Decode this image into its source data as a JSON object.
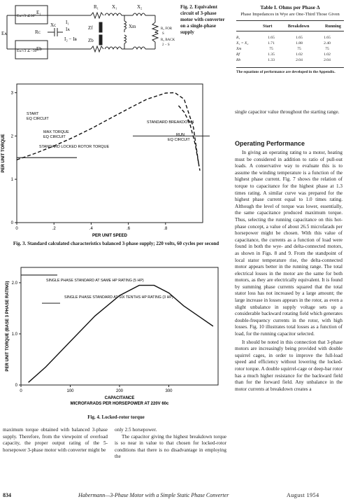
{
  "fig2": {
    "labels": [
      "R₁",
      "X₁",
      "X₂",
      "E₁",
      "I₁",
      "Iᴀ",
      "Zf",
      "Xm",
      "R₂ FOR",
      "S",
      "Eᴀ",
      "Rᴄ",
      "Xᴄ",
      "I₂ − Iᴃ",
      "Zb",
      "R₂ BACK",
      "2 − S",
      "Eb"
    ],
    "source_top": "Eᴀ/√3 ∠30°",
    "source_bot": "Eᴀ/√3 ∠−30°",
    "caption": [
      "Fig. 2.  Equivalent",
      "circuit of 3-phase",
      "motor with converter",
      "on a single-phase",
      "supply"
    ]
  },
  "table": {
    "title": "Table I.  Ohms per Phase Δ",
    "subtitle": "Phase Impedances in Wye are One-Third Those Given",
    "headers": [
      "Start",
      "Breakdown",
      "Running"
    ],
    "rows": [
      [
        "R₁",
        "1.65",
        "1.65",
        "1.65"
      ],
      [
        "X₁ = X₂",
        "1.71",
        "1.88",
        "2.40"
      ],
      [
        "Xm",
        "75",
        "75",
        "75"
      ],
      [
        "Rf",
        "1.35",
        "1.02",
        "1.02"
      ],
      [
        "Rb",
        "1.33",
        "2.04",
        "2.04"
      ]
    ],
    "note": "The equations of performance are developed in the Appendix."
  },
  "fig3": {
    "caption": "Fig. 3.  Standard calculated characteristics balanced 3-phase supply; 220 volts, 60 cycles per second",
    "annotations": {
      "start": "START",
      "eq1": "EQ CIRCUIT",
      "max": "MAX TORQUE",
      "eq2": "EQ CIRCUIT",
      "std_lr": "STANDARD LOCKED ROTOR TORQUE",
      "std_bd": "STANDARD BREAKDOWN",
      "run": "RUN",
      "eq3": "EQ CIRCUIT"
    }
  },
  "fig4": {
    "caption": "Fig. 4.  Locked-rotor torque",
    "annotations": {
      "single": "SINGLE PHASE STANDARD AT SAME HP RATING (5 HP)",
      "six": "SINGLE PHASE STANDARD AT SIX TENTHS HP RATING (3 HP)"
    }
  },
  "chart_data": [
    {
      "type": "line",
      "title": "",
      "xlabel": "PER UNIT SPEED",
      "ylabel": "PER UNIT TORQUE",
      "xlim": [
        0,
        1.0
      ],
      "ylim": [
        0,
        3.2
      ],
      "x_ticks": [
        "0",
        ".2",
        ".4",
        ".6",
        ".8"
      ],
      "y_ticks": [
        "0",
        "1",
        "2",
        "3"
      ],
      "series": [
        {
          "name": "EQ CIRCUIT",
          "x": [
            0,
            0.1,
            0.2,
            0.3,
            0.4,
            0.5,
            0.6,
            0.7,
            0.8,
            0.85,
            0.9,
            0.95,
            0.98
          ],
          "y": [
            1.45,
            1.6,
            1.77,
            1.96,
            2.17,
            2.4,
            2.63,
            2.85,
            2.99,
            3.0,
            2.85,
            2.2,
            1.3
          ]
        },
        {
          "name": "",
          "x": [
            0.87,
            0.9,
            0.93,
            0.96,
            0.985
          ],
          "y": [
            2.7,
            2.55,
            2.3,
            1.8,
            1.2
          ]
        }
      ],
      "reference_lines": [
        {
          "label": "STANDARD LOCKED ROTOR TORQUE",
          "y": 1.5
        },
        {
          "label": "STANDARD BREAKDOWN",
          "y": 2.0
        }
      ]
    },
    {
      "type": "line",
      "title": "",
      "xlabel": "CAPACITANCE\nMICROFARADS PER HORSEPOWER AT 220V 60c",
      "ylabel": "PER UNIT TORQUE (BASE 3 PHASE RATING)",
      "xlim": [
        0,
        400
      ],
      "ylim": [
        0,
        2.3
      ],
      "x_ticks": [
        "0",
        "100",
        "200",
        "300"
      ],
      "y_ticks": [
        "0",
        "1.0",
        "2.0"
      ],
      "series": [
        {
          "name": "",
          "x": [
            15,
            50,
            100,
            150,
            200,
            240,
            270,
            300,
            330,
            360,
            390
          ],
          "y": [
            0.05,
            0.35,
            0.85,
            1.35,
            1.75,
            1.95,
            1.95,
            1.8,
            1.55,
            1.35,
            1.15
          ]
        }
      ],
      "reference_lines": [
        {
          "label": "SINGLE PHASE STANDARD AT SAME HP RATING (5 HP)",
          "y": 2.15
        },
        {
          "label": "SINGLE PHASE STANDARD AT SIX TENTHS HP RATING (3 HP)",
          "y": 1.6
        }
      ]
    }
  ],
  "right_col": {
    "p0": "single capacitor value throughout the starting range.",
    "heading": "Operating Performance",
    "p1": "In giving an operating rating to a motor, heating must be considered in addition to ratio of pull-out loads. A conservative way to evaluate this is to assume the winding temperature is a function of the highest phase current. Fig. 7 shows the relation of torque to capacitance for the highest phase at 1.3 times rating. A similar curve was prepared for the highest phase current equal to 1.0 times rating. Although the level of torque was lower, essentially, the same capacitance produced maximum torque. Thus, selecting the running capacitance on this hot-phase concept, a value of about 26.5 microfarads per horsepower might be chosen. With this value of capacitance, the currents as a function of load were found in both the wye- and delta-connected motors, as shown in Figs. 8 and 9. From the standpoint of local stator temperature rise, the delta-connected motor appears better in the running range. The total electrical losses in the motor are the same for both motors, as they are electrically equivalent. It is found by summing phase currents squared that the total stator loss has not increased by a large amount; the large increase in losses appears in the rotor, as even a slight unbalance in supply voltage sets up a considerable backward rotating field which generates double-frequency currents in the rotor, with high losses. Fig. 10 illustrates total losses as a function of load, for the running capacitor selected.",
    "p2": "It should be noted in this connection that 3-phase motors are increasingly being provided with double squirrel cages, in order to improve the full-load speed and efficiency without lowering the locked-rotor torque. A double squirrel-cage or deep-bar rotor has a much higher resistance for the backward field than for the forward field. Any unbalance in the motor currents at breakdown creates a"
  },
  "left_col": {
    "text": "maximum torque obtained with balanced 3-phase supply. Therefore, from the viewpoint of overload capacity, the proper output rating of the 5-horsepower 3-phase motor with converter might be"
  },
  "mid_col": {
    "text": "only 2.5 horsepower.",
    "p2": "The capacitor giving the highest breakdown torque is so near in value to that chosen for locked-rotor conditions that there is no disadvantage in employing the"
  },
  "footer": {
    "page": "834",
    "running": "Habermann—3-Phase Motor with a Simple Static Phase Converter",
    "date": "August 1954"
  }
}
